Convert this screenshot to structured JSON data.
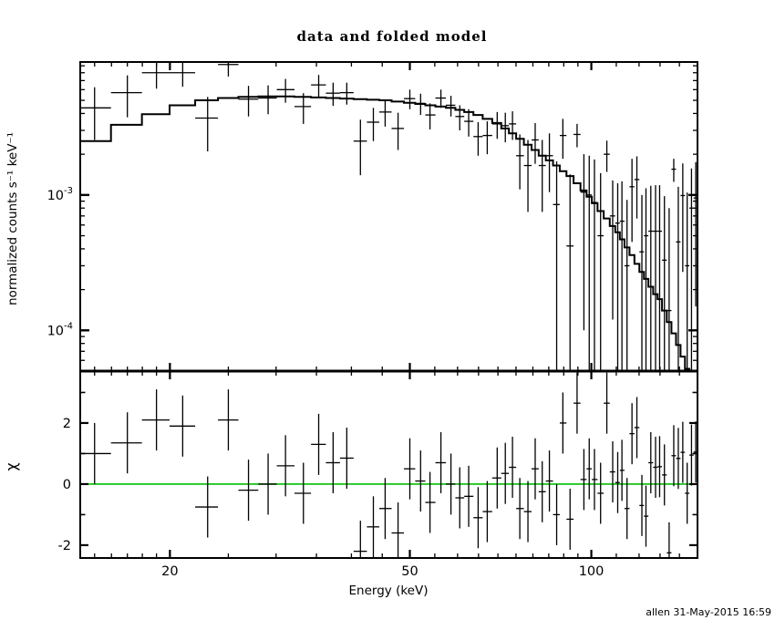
{
  "title": "data and folded model",
  "footer": "allen 31-May-2015 16:59",
  "colors": {
    "foreground": "#000000",
    "background": "#ffffff",
    "zero_line": "#00c000"
  },
  "chart_data": {
    "type": "scatter",
    "subtype": "xspec-spectrum-with-residuals",
    "title": "data and folded model",
    "xlabel": "Energy (keV)",
    "xscale": "log",
    "xlim": [
      14.2,
      150
    ],
    "xticks_major": [
      20,
      50,
      100
    ],
    "xtick_labels": [
      "20",
      "50",
      "100"
    ],
    "xticks_minor": [
      15,
      16,
      17,
      18,
      19,
      25,
      30,
      35,
      40,
      45,
      55,
      60,
      65,
      70,
      75,
      80,
      85,
      90,
      95,
      110,
      120,
      130,
      140
    ],
    "grid": false,
    "legend": "none",
    "top_panel": {
      "ylabel": "normalized counts s⁻¹ keV⁻¹",
      "yscale": "log",
      "ylim": [
        5e-05,
        0.0096
      ],
      "yticks_major": [
        {
          "value": 0.001,
          "base": "10",
          "exp": "-3"
        },
        {
          "value": 0.0001,
          "base": "10",
          "exp": "-4"
        }
      ]
    },
    "bottom_panel": {
      "ylabel": "χ",
      "yscale": "linear",
      "ylim": [
        -2.42,
        3.7
      ],
      "yticks_labeled": [
        {
          "value": 2,
          "label": "2"
        },
        {
          "value": 0,
          "label": "0"
        },
        {
          "value": -2,
          "label": "-2"
        }
      ],
      "yticks_minor": [
        -1,
        1,
        3
      ],
      "zero_line": 0
    },
    "series": [
      {
        "name": "data",
        "style": "error-bar-crosses",
        "color": "#000000"
      },
      {
        "name": "folded model",
        "style": "step-histogram",
        "color": "#000000"
      },
      {
        "name": "chi residuals",
        "style": "error-bar-crosses",
        "color": "#000000"
      }
    ],
    "bins": {
      "columns": [
        "energy_keV",
        "counts",
        "counts_err",
        "model",
        "chi"
      ],
      "value_scale": 0.001,
      "value_unit": "counts s^-1 keV^-1",
      "chi_err": 1.0,
      "rows": [
        [
          15.0,
          4.4,
          1.85,
          2.5,
          1.0
        ],
        [
          17.0,
          5.7,
          1.95,
          3.3,
          1.35
        ],
        [
          19.0,
          8.0,
          1.9,
          3.95,
          2.1
        ],
        [
          21.0,
          8.0,
          1.7,
          4.6,
          1.9
        ],
        [
          23.1,
          3.7,
          1.6,
          5.0,
          -0.75
        ],
        [
          25.0,
          9.2,
          1.7,
          5.2,
          2.1
        ],
        [
          27.0,
          5.1,
          1.3,
          5.3,
          -0.2
        ],
        [
          29.1,
          5.2,
          1.25,
          5.35,
          0.0
        ],
        [
          31.1,
          6.0,
          1.2,
          5.35,
          0.6
        ],
        [
          33.3,
          4.5,
          1.15,
          5.3,
          -0.3
        ],
        [
          35.3,
          6.5,
          1.2,
          5.25,
          1.3
        ],
        [
          37.3,
          5.65,
          1.1,
          5.2,
          0.7
        ],
        [
          39.3,
          5.7,
          1.05,
          5.15,
          0.85
        ],
        [
          41.4,
          2.5,
          1.1,
          5.1,
          -2.2
        ],
        [
          43.5,
          3.45,
          0.95,
          5.05,
          -1.4
        ],
        [
          45.5,
          4.1,
          0.9,
          5.0,
          -0.8
        ],
        [
          47.8,
          3.1,
          0.95,
          4.9,
          -1.6
        ],
        [
          50.0,
          5.15,
          0.85,
          4.8,
          0.5
        ],
        [
          52.1,
          4.75,
          0.85,
          4.7,
          0.1
        ],
        [
          54.0,
          3.9,
          0.85,
          4.6,
          -0.6
        ],
        [
          56.3,
          5.2,
          0.8,
          4.5,
          0.7
        ],
        [
          58.5,
          4.6,
          0.8,
          4.4,
          0.0
        ],
        [
          60.5,
          3.8,
          0.8,
          4.25,
          -0.45
        ],
        [
          62.6,
          3.5,
          0.8,
          4.1,
          -0.4
        ],
        [
          64.9,
          2.7,
          0.75,
          3.9,
          -1.1
        ],
        [
          67.2,
          2.75,
          0.75,
          3.65,
          -0.9
        ],
        [
          69.8,
          3.35,
          0.75,
          3.4,
          0.2
        ],
        [
          72.0,
          3.25,
          0.8,
          3.1,
          0.35
        ],
        [
          74.0,
          3.35,
          0.8,
          2.85,
          0.55
        ],
        [
          76.1,
          1.95,
          0.85,
          2.6,
          -0.8
        ],
        [
          78.5,
          1.65,
          0.9,
          2.35,
          -0.9
        ],
        [
          80.7,
          2.55,
          0.85,
          2.15,
          0.5
        ],
        [
          82.9,
          1.65,
          0.9,
          1.95,
          -0.25
        ],
        [
          85.2,
          1.95,
          0.9,
          1.8,
          0.1
        ],
        [
          87.6,
          0.85,
          0.92,
          1.65,
          -1.0
        ],
        [
          89.7,
          2.75,
          0.9,
          1.5,
          2.0
        ],
        [
          92.2,
          0.42,
          1.0,
          1.38,
          -1.15
        ],
        [
          94.7,
          2.8,
          0.55,
          1.22,
          2.65
        ],
        [
          97.2,
          1.05,
          0.95,
          1.08,
          0.15
        ],
        [
          99.2,
          1.0,
          0.95,
          0.97,
          0.5
        ],
        [
          101.2,
          0.88,
          0.95,
          0.87,
          0.15
        ],
        [
          103.6,
          0.5,
          0.95,
          0.76,
          -0.3
        ],
        [
          106.1,
          2.0,
          0.52,
          0.67,
          2.65
        ],
        [
          108.5,
          0.7,
          0.58,
          0.59,
          0.4
        ],
        [
          110.6,
          0.62,
          0.6,
          0.53,
          0.05
        ],
        [
          112.4,
          0.64,
          0.62,
          0.47,
          0.45
        ],
        [
          114.6,
          0.3,
          0.62,
          0.41,
          -0.8
        ],
        [
          116.8,
          1.15,
          0.7,
          0.36,
          1.65
        ],
        [
          119.0,
          1.3,
          0.63,
          0.31,
          1.85
        ],
        [
          121.3,
          0.38,
          0.62,
          0.27,
          -0.7
        ],
        [
          123.2,
          0.5,
          0.62,
          0.24,
          -1.05
        ],
        [
          125.5,
          0.54,
          0.63,
          0.21,
          0.7
        ],
        [
          127.8,
          0.54,
          0.64,
          0.185,
          0.55
        ],
        [
          129.8,
          0.54,
          0.64,
          0.17,
          0.57
        ],
        [
          132.2,
          0.33,
          0.65,
          0.14,
          0.3
        ],
        [
          134.6,
          0.14,
          0.66,
          0.115,
          -2.25
        ],
        [
          137.0,
          1.55,
          0.3,
          0.095,
          0.93
        ],
        [
          139.4,
          0.45,
          0.7,
          0.078,
          0.84
        ],
        [
          141.8,
          0.99,
          0.72,
          0.064,
          1.04
        ],
        [
          144.2,
          0.3,
          0.74,
          0.052,
          -0.3
        ],
        [
          146.6,
          0.8,
          0.77,
          0.043,
          0.95
        ],
        [
          149.0,
          0.95,
          0.8,
          0.036,
          1.05
        ]
      ]
    }
  }
}
